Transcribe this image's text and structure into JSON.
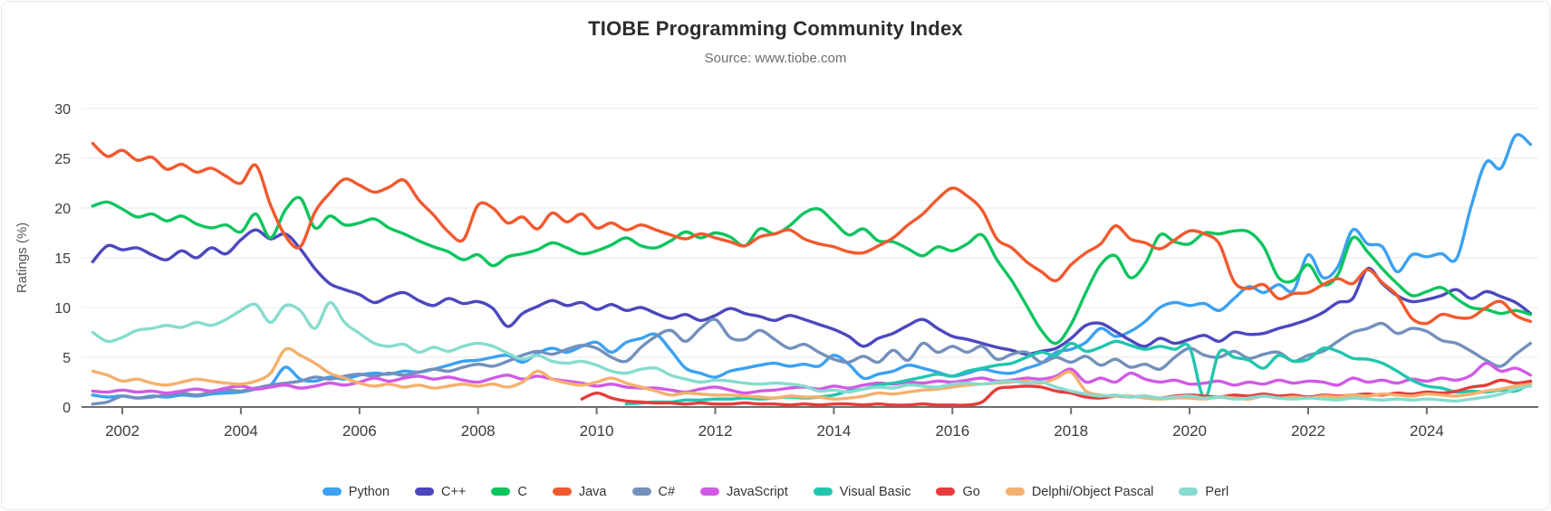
{
  "header": {
    "title": "TIOBE Programming Community Index",
    "subtitle": "Source: www.tiobe.com"
  },
  "chart_data": {
    "type": "line",
    "title": "TIOBE Programming Community Index",
    "subtitle": "Source: www.tiobe.com",
    "xlabel": "",
    "ylabel": "Ratings (%)",
    "ylim": [
      0,
      30
    ],
    "yticks": [
      0,
      5,
      10,
      15,
      20,
      25,
      30
    ],
    "xticks": [
      2002,
      2004,
      2006,
      2008,
      2010,
      2012,
      2014,
      2016,
      2018,
      2020,
      2022,
      2024
    ],
    "grid": true,
    "legend_position": "bottom",
    "x_start": 2001.5,
    "x_step": 0.25,
    "series": [
      {
        "name": "Python",
        "color": "#3BA1F2",
        "values": [
          1.2,
          1.0,
          1.1,
          0.9,
          1.1,
          1.0,
          1.2,
          1.1,
          1.3,
          1.4,
          1.5,
          1.8,
          2.2,
          4.0,
          2.8,
          2.6,
          3.0,
          2.8,
          3.2,
          3.4,
          3.3,
          3.6,
          3.5,
          3.8,
          4.2,
          4.6,
          4.7,
          5.0,
          5.2,
          4.5,
          5.4,
          5.9,
          5.5,
          6.1,
          6.5,
          5.5,
          6.5,
          6.9,
          7.3,
          5.7,
          3.9,
          3.4,
          3.0,
          3.6,
          3.9,
          4.2,
          4.4,
          4.1,
          4.3,
          4.1,
          5.2,
          4.3,
          2.9,
          3.3,
          3.6,
          4.2,
          3.9,
          3.5,
          3.1,
          3.4,
          3.8,
          3.5,
          3.4,
          3.9,
          4.4,
          5.5,
          5.8,
          6.5,
          7.9,
          7.1,
          7.6,
          8.6,
          10.0,
          10.5,
          10.2,
          10.4,
          9.7,
          10.9,
          12.1,
          11.5,
          12.3,
          11.7,
          15.3,
          13.0,
          14.1,
          17.8,
          16.4,
          16.1,
          13.6,
          15.3,
          15.1,
          15.4,
          14.9,
          20.2,
          24.6,
          24.0,
          27.3,
          26.4
        ]
      },
      {
        "name": "C++",
        "color": "#4B48BE",
        "values": [
          14.6,
          16.2,
          15.8,
          16.0,
          15.3,
          14.8,
          15.7,
          15.0,
          16.0,
          15.4,
          16.8,
          17.8,
          16.9,
          17.4,
          15.9,
          13.9,
          12.4,
          11.8,
          11.3,
          10.5,
          11.1,
          11.5,
          10.7,
          10.2,
          10.9,
          10.4,
          10.6,
          9.9,
          8.1,
          9.4,
          10.1,
          10.7,
          10.2,
          10.5,
          9.8,
          10.3,
          9.7,
          10.0,
          9.4,
          8.9,
          9.3,
          8.7,
          9.2,
          9.9,
          9.4,
          9.1,
          8.7,
          9.2,
          8.8,
          8.3,
          7.8,
          7.1,
          6.1,
          6.9,
          7.4,
          8.2,
          8.8,
          7.9,
          7.1,
          6.8,
          6.4,
          6.0,
          5.7,
          5.3,
          5.6,
          5.9,
          6.9,
          8.2,
          8.4,
          7.6,
          6.7,
          6.1,
          6.9,
          6.4,
          6.8,
          7.2,
          6.6,
          7.5,
          7.3,
          7.4,
          7.9,
          8.3,
          8.8,
          9.5,
          10.5,
          10.9,
          13.9,
          12.4,
          11.2,
          10.6,
          10.8,
          11.2,
          11.8,
          10.9,
          11.6,
          11.1,
          10.5,
          9.4
        ]
      },
      {
        "name": "C",
        "color": "#0CC55E",
        "values": [
          20.2,
          20.6,
          19.9,
          19.1,
          19.4,
          18.7,
          19.2,
          18.4,
          18.0,
          18.3,
          17.6,
          19.4,
          17.0,
          19.8,
          21.0,
          18.0,
          19.2,
          18.3,
          18.5,
          18.9,
          18.0,
          17.4,
          16.7,
          16.1,
          15.6,
          14.8,
          15.3,
          14.2,
          15.1,
          15.4,
          15.8,
          16.5,
          16.0,
          15.4,
          15.7,
          16.3,
          17.0,
          16.2,
          16.0,
          16.7,
          17.6,
          17.0,
          17.5,
          17.1,
          16.2,
          17.9,
          17.4,
          18.2,
          19.5,
          19.9,
          18.6,
          17.3,
          17.9,
          16.7,
          16.6,
          15.9,
          15.2,
          16.1,
          15.7,
          16.4,
          17.3,
          14.8,
          12.7,
          10.2,
          7.7,
          6.4,
          8.3,
          11.5,
          14.3,
          15.2,
          13.0,
          14.4,
          17.3,
          16.6,
          16.4,
          17.5,
          17.4,
          17.7,
          17.6,
          16.1,
          13.0,
          12.7,
          14.3,
          12.3,
          13.3,
          17.0,
          15.6,
          13.9,
          12.4,
          11.2,
          11.6,
          12.0,
          10.9,
          10.0,
          9.8,
          9.4,
          9.7,
          9.3
        ]
      },
      {
        "name": "Java",
        "color": "#F2592E",
        "values": [
          26.5,
          25.2,
          25.8,
          24.8,
          25.1,
          23.9,
          24.4,
          23.6,
          24.0,
          23.2,
          22.5,
          24.3,
          20.3,
          17.2,
          16.1,
          19.6,
          21.5,
          22.9,
          22.3,
          21.6,
          22.1,
          22.8,
          20.8,
          19.3,
          17.6,
          16.8,
          20.3,
          20.0,
          18.5,
          19.1,
          17.9,
          19.5,
          18.6,
          19.4,
          18.0,
          18.5,
          17.8,
          18.3,
          17.8,
          17.3,
          16.9,
          17.4,
          17.0,
          16.6,
          16.2,
          17.1,
          17.4,
          17.8,
          16.9,
          16.4,
          16.1,
          15.6,
          15.5,
          16.2,
          17.0,
          18.3,
          19.4,
          20.9,
          22.0,
          21.2,
          19.8,
          16.9,
          16.0,
          14.6,
          13.6,
          12.7,
          14.3,
          15.5,
          16.4,
          18.2,
          16.9,
          16.5,
          15.9,
          16.8,
          17.7,
          17.4,
          16.4,
          12.6,
          11.9,
          12.3,
          10.9,
          11.4,
          11.5,
          12.3,
          12.9,
          12.4,
          13.8,
          12.5,
          11.2,
          8.9,
          8.4,
          9.3,
          9.0,
          9.0,
          10.0,
          10.6,
          9.2,
          8.6
        ]
      },
      {
        "name": "C#",
        "color": "#7390BC",
        "values": [
          0.3,
          0.5,
          1.1,
          0.9,
          1.0,
          1.2,
          1.4,
          1.2,
          1.5,
          1.7,
          1.6,
          1.9,
          2.2,
          2.4,
          2.6,
          3.0,
          2.8,
          3.1,
          3.3,
          3.1,
          3.4,
          3.2,
          3.5,
          3.8,
          3.6,
          4.0,
          4.3,
          4.1,
          4.6,
          5.2,
          5.6,
          5.3,
          5.8,
          6.2,
          5.9,
          5.0,
          4.6,
          6.0,
          7.1,
          7.7,
          6.6,
          7.9,
          8.8,
          7.0,
          6.8,
          7.7,
          6.8,
          5.9,
          6.3,
          5.5,
          4.8,
          4.5,
          5.1,
          4.5,
          5.7,
          4.7,
          6.4,
          5.5,
          6.1,
          5.5,
          6.1,
          4.8,
          5.3,
          5.5,
          4.5,
          5.0,
          4.5,
          5.1,
          4.2,
          4.8,
          4.0,
          4.3,
          3.8,
          5.0,
          5.9,
          5.2,
          5.0,
          5.6,
          4.9,
          5.3,
          5.5,
          4.6,
          5.2,
          5.6,
          6.6,
          7.5,
          7.9,
          8.4,
          7.4,
          7.9,
          7.6,
          6.7,
          6.4,
          5.6,
          4.7,
          4.1,
          5.3,
          6.4
        ]
      },
      {
        "name": "JavaScript",
        "color": "#D05BE5",
        "values": [
          1.6,
          1.5,
          1.7,
          1.5,
          1.6,
          1.4,
          1.6,
          1.8,
          1.6,
          1.9,
          2.1,
          1.8,
          2.0,
          2.2,
          1.9,
          2.1,
          2.4,
          2.2,
          2.5,
          2.9,
          2.6,
          2.9,
          3.1,
          2.8,
          3.0,
          2.7,
          2.5,
          2.9,
          3.2,
          2.8,
          3.1,
          2.8,
          2.6,
          2.4,
          2.1,
          2.3,
          2.0,
          1.9,
          1.9,
          1.7,
          1.5,
          1.8,
          2.0,
          1.7,
          1.4,
          1.6,
          1.7,
          1.9,
          2.0,
          1.8,
          2.1,
          1.9,
          2.2,
          2.4,
          2.3,
          2.5,
          2.4,
          2.6,
          2.5,
          2.7,
          2.9,
          2.6,
          2.7,
          2.9,
          2.8,
          3.1,
          3.8,
          2.5,
          2.9,
          2.5,
          3.4,
          2.8,
          2.5,
          2.7,
          2.3,
          2.4,
          2.6,
          2.2,
          2.5,
          2.3,
          2.7,
          2.4,
          2.6,
          2.5,
          2.2,
          2.9,
          2.5,
          2.7,
          2.4,
          2.8,
          2.6,
          2.9,
          2.7,
          3.2,
          4.4,
          3.6,
          3.9,
          3.2
        ]
      },
      {
        "name": "Visual Basic",
        "color": "#21C6AE",
        "values": [
          null,
          null,
          null,
          null,
          null,
          null,
          null,
          null,
          null,
          null,
          null,
          null,
          null,
          null,
          null,
          null,
          null,
          null,
          null,
          null,
          null,
          null,
          null,
          null,
          null,
          null,
          null,
          null,
          null,
          null,
          null,
          null,
          null,
          null,
          null,
          null,
          0.3,
          0.4,
          0.5,
          0.5,
          0.7,
          0.7,
          0.8,
          0.8,
          0.9,
          0.8,
          0.9,
          1.0,
          0.9,
          1.0,
          1.2,
          1.6,
          1.8,
          2.2,
          2.4,
          2.7,
          3.0,
          3.3,
          3.1,
          3.6,
          3.9,
          4.2,
          4.4,
          5.0,
          5.5,
          5.2,
          6.4,
          5.6,
          6.0,
          6.6,
          6.2,
          5.8,
          6.1,
          5.8,
          6.0,
          0.9,
          5.5,
          5.0,
          4.7,
          3.9,
          5.2,
          4.6,
          4.8,
          5.9,
          5.6,
          4.9,
          4.8,
          4.4,
          3.6,
          2.7,
          2.1,
          1.9,
          1.5,
          1.6,
          1.5,
          1.7,
          1.6,
          2.4
        ]
      },
      {
        "name": "Go",
        "color": "#E73C3C",
        "values": [
          null,
          null,
          null,
          null,
          null,
          null,
          null,
          null,
          null,
          null,
          null,
          null,
          null,
          null,
          null,
          null,
          null,
          null,
          null,
          null,
          null,
          null,
          null,
          null,
          null,
          null,
          null,
          null,
          null,
          null,
          null,
          null,
          null,
          0.8,
          1.4,
          0.9,
          0.6,
          0.5,
          0.4,
          0.4,
          0.3,
          0.4,
          0.3,
          0.3,
          0.4,
          0.3,
          0.3,
          0.2,
          0.3,
          0.2,
          0.3,
          0.3,
          0.2,
          0.3,
          0.2,
          0.2,
          0.3,
          0.2,
          0.2,
          0.2,
          0.5,
          1.8,
          2.0,
          2.1,
          2.0,
          1.6,
          1.4,
          1.0,
          0.9,
          1.1,
          1.0,
          1.1,
          0.9,
          1.1,
          1.2,
          1.1,
          1.0,
          1.2,
          1.1,
          1.3,
          1.1,
          1.2,
          1.0,
          1.2,
          1.1,
          1.2,
          1.3,
          1.2,
          1.4,
          1.3,
          1.5,
          1.4,
          1.6,
          2.0,
          2.2,
          2.7,
          2.4,
          2.6
        ]
      },
      {
        "name": "Delphi/Object Pascal",
        "color": "#F5B06D",
        "values": [
          3.6,
          3.2,
          2.6,
          2.8,
          2.4,
          2.2,
          2.5,
          2.8,
          2.6,
          2.4,
          2.3,
          2.6,
          3.4,
          5.8,
          5.2,
          4.4,
          3.4,
          2.9,
          2.4,
          2.1,
          2.3,
          2.0,
          2.2,
          1.9,
          2.1,
          2.3,
          2.1,
          2.3,
          2.0,
          2.5,
          3.6,
          2.8,
          2.4,
          2.2,
          2.5,
          2.9,
          2.4,
          2.0,
          1.6,
          1.2,
          1.4,
          1.3,
          1.2,
          1.2,
          1.1,
          1.0,
          0.9,
          1.1,
          1.0,
          1.0,
          0.8,
          0.9,
          1.1,
          1.4,
          1.3,
          1.5,
          1.7,
          1.8,
          2.0,
          2.2,
          2.3,
          2.4,
          2.5,
          2.6,
          2.4,
          2.9,
          3.5,
          1.6,
          1.2,
          1.1,
          1.1,
          0.9,
          0.8,
          0.9,
          0.9,
          0.8,
          1.0,
          0.9,
          0.8,
          1.1,
          0.9,
          1.0,
          0.9,
          1.1,
          1.0,
          1.2,
          1.1,
          1.3,
          1.2,
          1.1,
          1.3,
          1.2,
          1.1,
          1.3,
          1.6,
          1.8,
          2.1,
          2.3
        ]
      },
      {
        "name": "Perl",
        "color": "#86DCCF",
        "values": [
          7.5,
          6.6,
          7.0,
          7.7,
          7.9,
          8.2,
          8.0,
          8.5,
          8.2,
          8.8,
          9.7,
          10.3,
          8.5,
          10.2,
          9.7,
          7.9,
          10.5,
          8.5,
          7.4,
          6.4,
          6.1,
          6.3,
          5.5,
          6.0,
          5.6,
          6.1,
          6.4,
          6.1,
          5.4,
          4.8,
          5.2,
          4.6,
          4.4,
          4.6,
          4.2,
          3.6,
          3.4,
          3.8,
          3.9,
          3.2,
          2.8,
          2.5,
          2.7,
          2.6,
          2.4,
          2.3,
          2.4,
          2.3,
          2.1,
          1.6,
          1.7,
          1.5,
          1.8,
          2.0,
          1.9,
          2.2,
          2.1,
          2.0,
          2.3,
          2.4,
          2.3,
          2.5,
          2.6,
          2.4,
          2.5,
          2.0,
          1.6,
          1.3,
          1.1,
          1.2,
          1.0,
          1.1,
          0.9,
          1.0,
          1.1,
          0.9,
          1.0,
          0.8,
          0.9,
          1.1,
          0.9,
          0.8,
          0.9,
          0.8,
          0.7,
          0.9,
          0.8,
          0.7,
          0.8,
          0.7,
          0.8,
          0.7,
          0.6,
          0.8,
          1.0,
          1.3,
          1.8,
          2.1
        ]
      }
    ]
  }
}
